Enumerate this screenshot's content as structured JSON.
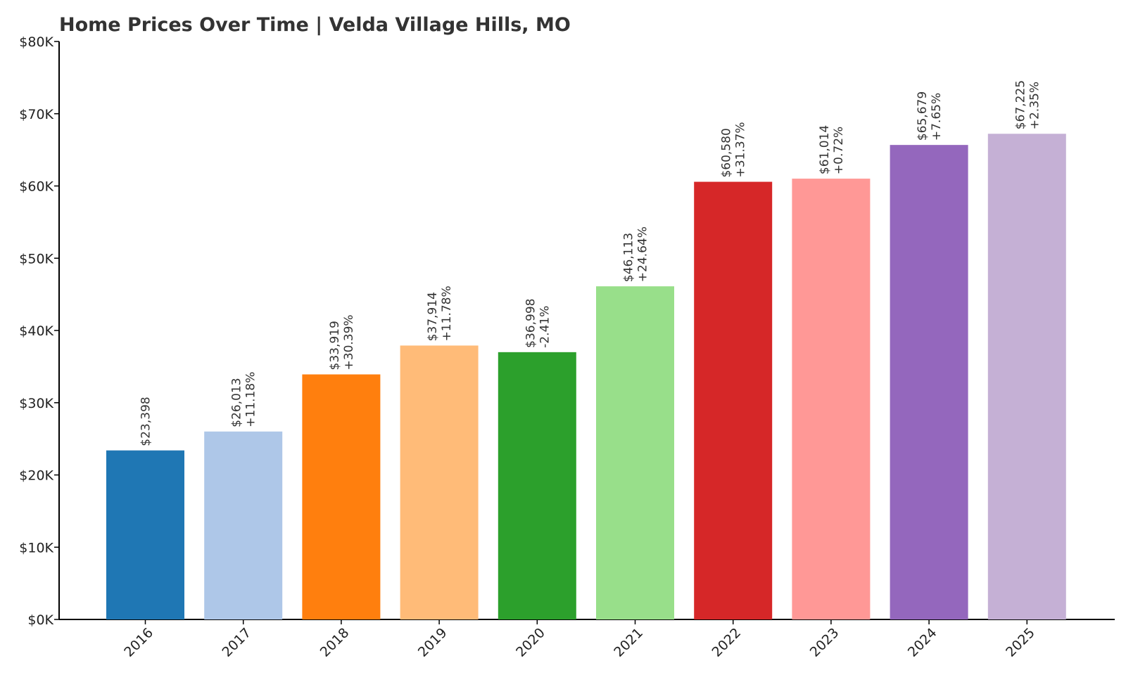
{
  "chart_data": {
    "type": "bar",
    "title": "Home Prices Over Time | Velda Village Hills, MO",
    "xlabel": "",
    "ylabel": "",
    "categories": [
      "2016",
      "2017",
      "2018",
      "2019",
      "2020",
      "2021",
      "2022",
      "2023",
      "2024",
      "2025"
    ],
    "values": [
      23398,
      26013,
      33919,
      37914,
      36998,
      46113,
      60580,
      61014,
      65679,
      67225
    ],
    "value_labels": [
      "$23,398",
      "$26,013",
      "$33,919",
      "$37,914",
      "$36,998",
      "$46,113",
      "$60,580",
      "$61,014",
      "$65,679",
      "$67,225"
    ],
    "change_labels": [
      "",
      "+11.18%",
      "+30.39%",
      "+11.78%",
      "-2.41%",
      "+24.64%",
      "+31.37%",
      "+0.72%",
      "+7.65%",
      "+2.35%"
    ],
    "colors": [
      "#1f77b4",
      "#aec7e8",
      "#ff7f0e",
      "#ffbb78",
      "#2ca02c",
      "#98df8a",
      "#d62728",
      "#ff9896",
      "#9467bd",
      "#c5b0d5"
    ],
    "ylim": [
      0,
      80000
    ],
    "yticks": [
      0,
      10000,
      20000,
      30000,
      40000,
      50000,
      60000,
      70000,
      80000
    ],
    "ytick_labels": [
      "$0K",
      "$10K",
      "$20K",
      "$30K",
      "$40K",
      "$50K",
      "$60K",
      "$70K",
      "$80K"
    ],
    "grid": false,
    "legend": "none"
  }
}
